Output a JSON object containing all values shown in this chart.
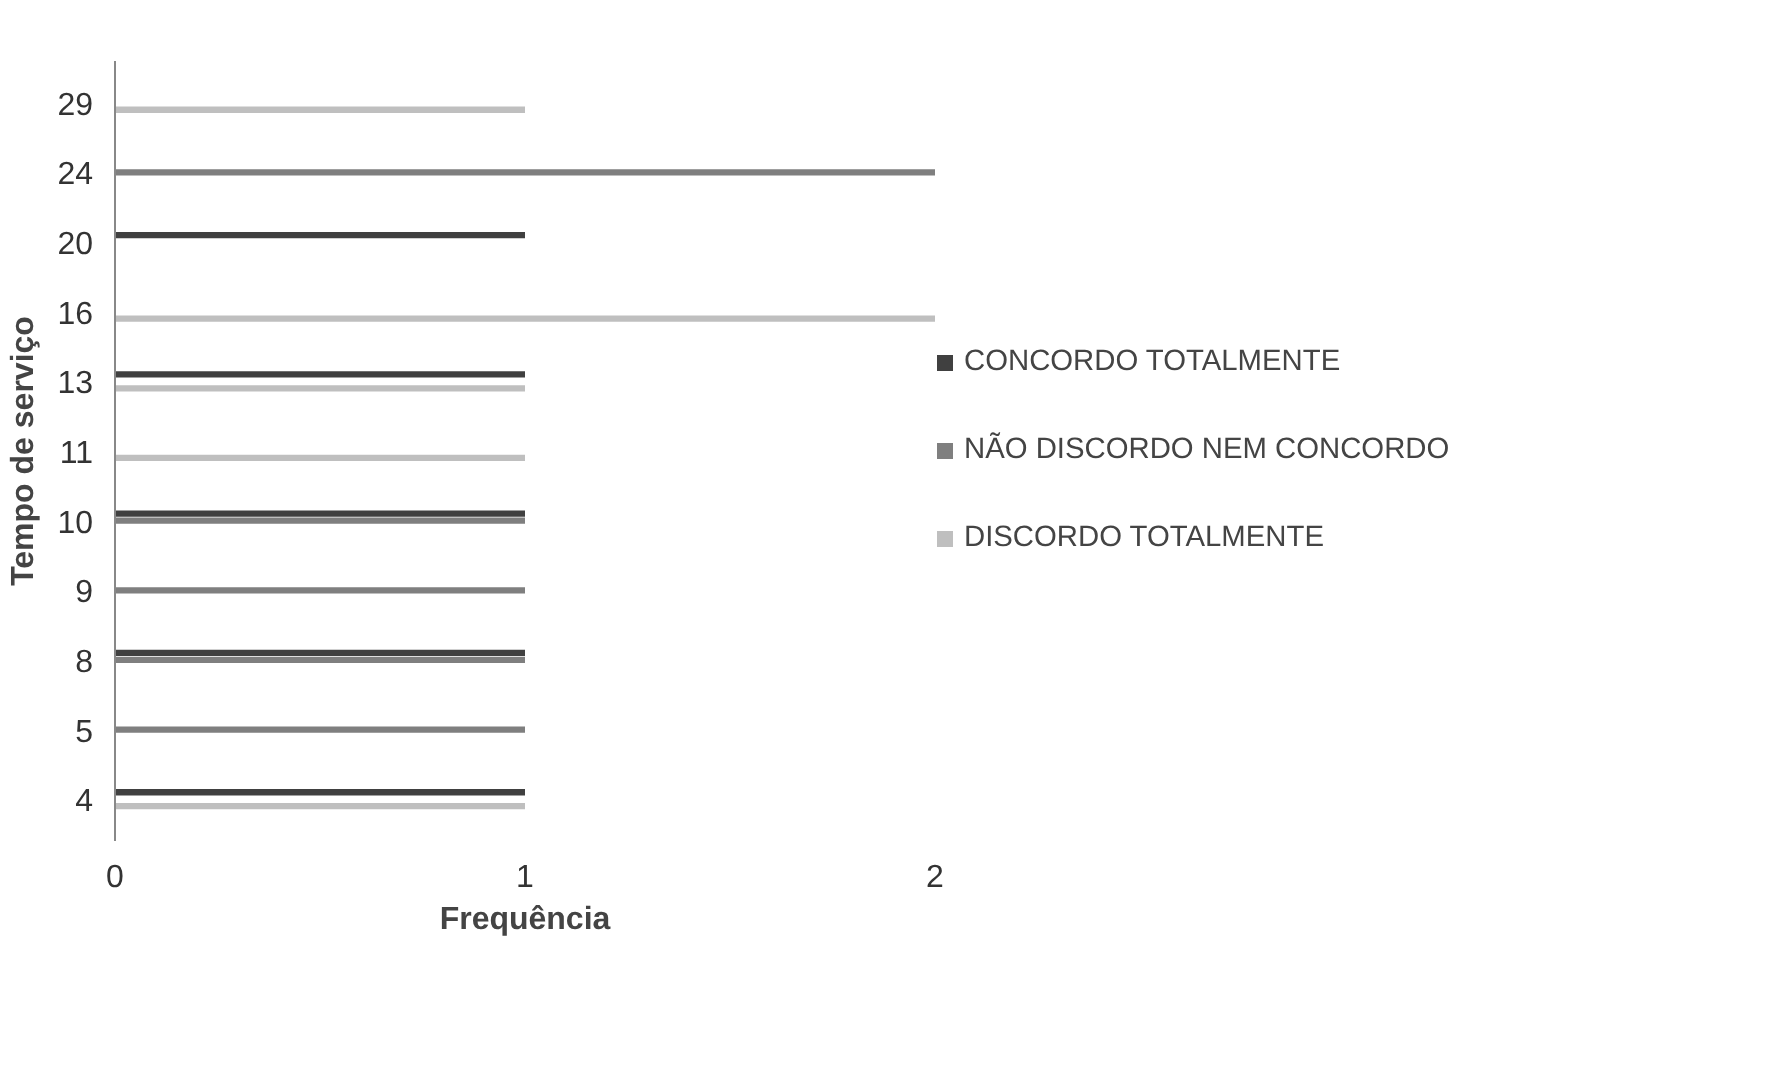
{
  "chart_data": {
    "type": "bar",
    "orientation": "horizontal",
    "xlabel": "Frequência",
    "ylabel": "Tempo de serviço",
    "categories": [
      "29",
      "24",
      "20",
      "16",
      "13",
      "11",
      "10",
      "9",
      "8",
      "5",
      "4"
    ],
    "series": [
      {
        "name": "CONCORDO TOTALMENTE",
        "color": "#404040",
        "values": [
          null,
          null,
          1,
          null,
          1,
          null,
          1,
          null,
          1,
          null,
          1
        ]
      },
      {
        "name": "NÃO DISCORDO NEM CONCORDO",
        "color": "#7f7f7f",
        "values": [
          null,
          2,
          null,
          null,
          null,
          null,
          1,
          1,
          1,
          1,
          null
        ]
      },
      {
        "name": "DISCORDO TOTALMENTE",
        "color": "#bfbfbf",
        "values": [
          1,
          null,
          null,
          2,
          1,
          1,
          null,
          null,
          null,
          null,
          1
        ]
      }
    ],
    "xlim": [
      0,
      2
    ],
    "xticks": [
      0,
      1,
      2
    ],
    "grid": false,
    "legend": "right"
  }
}
